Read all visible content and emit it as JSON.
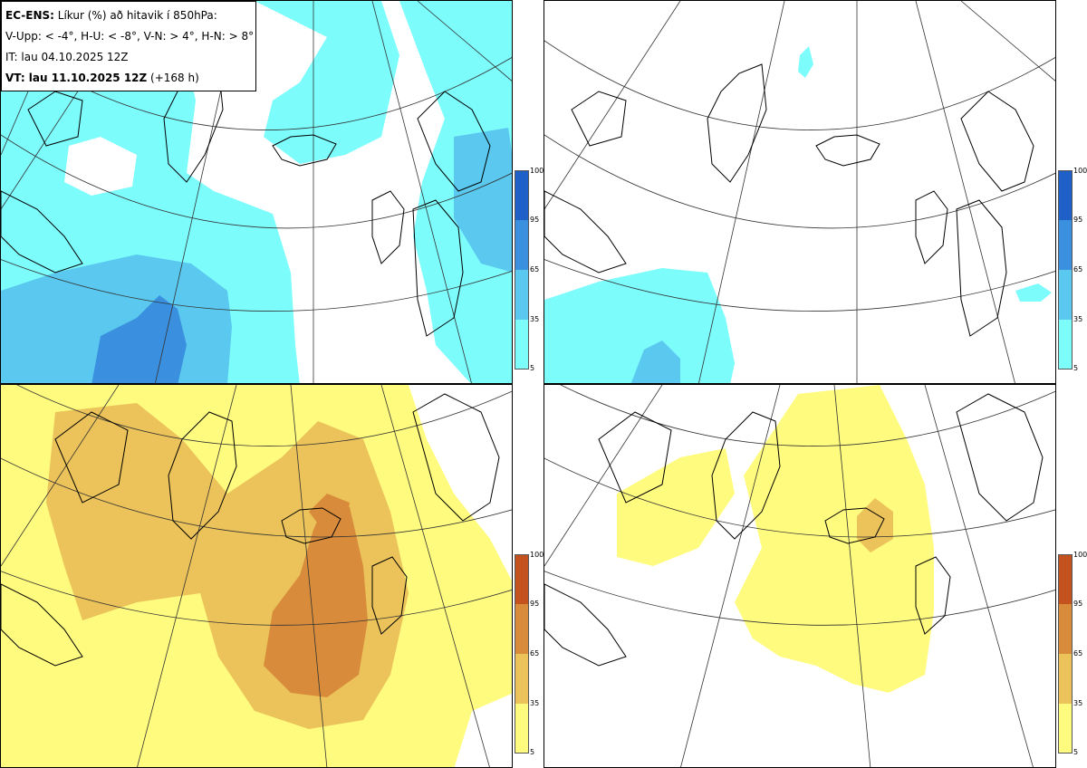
{
  "info": {
    "model": "EC-ENS:",
    "description": "Líkur (%) að hitavik í 850hPa:",
    "thresholds": "V-Upp: < -4°, H-U: < -8°, V-N: > 4°, H-N: > 8°",
    "initial_time": "IT: lau 04.10.2025 12Z",
    "valid_label": "VT: lau 11.10.2025 12Z",
    "lead_time": "(+168 h)"
  },
  "legend_ticks": [
    "100",
    "95",
    "65",
    "35",
    "5"
  ],
  "colors": {
    "cold": [
      "#7dfcfc",
      "#5ac8ef",
      "#3b8fdf",
      "#1f5fc8"
    ],
    "warm": [
      "#fffb7f",
      "#ebc35a",
      "#d88c3b",
      "#c4521f"
    ],
    "coast": "#000000",
    "graticule": "#333333"
  },
  "panels": [
    {
      "id": "top-left",
      "variable": "V-Upp",
      "scheme": "cold"
    },
    {
      "id": "top-right",
      "variable": "H-U",
      "scheme": "cold"
    },
    {
      "id": "bottom-left",
      "variable": "V-N",
      "scheme": "warm"
    },
    {
      "id": "bottom-right",
      "variable": "H-N",
      "scheme": "warm"
    }
  ]
}
